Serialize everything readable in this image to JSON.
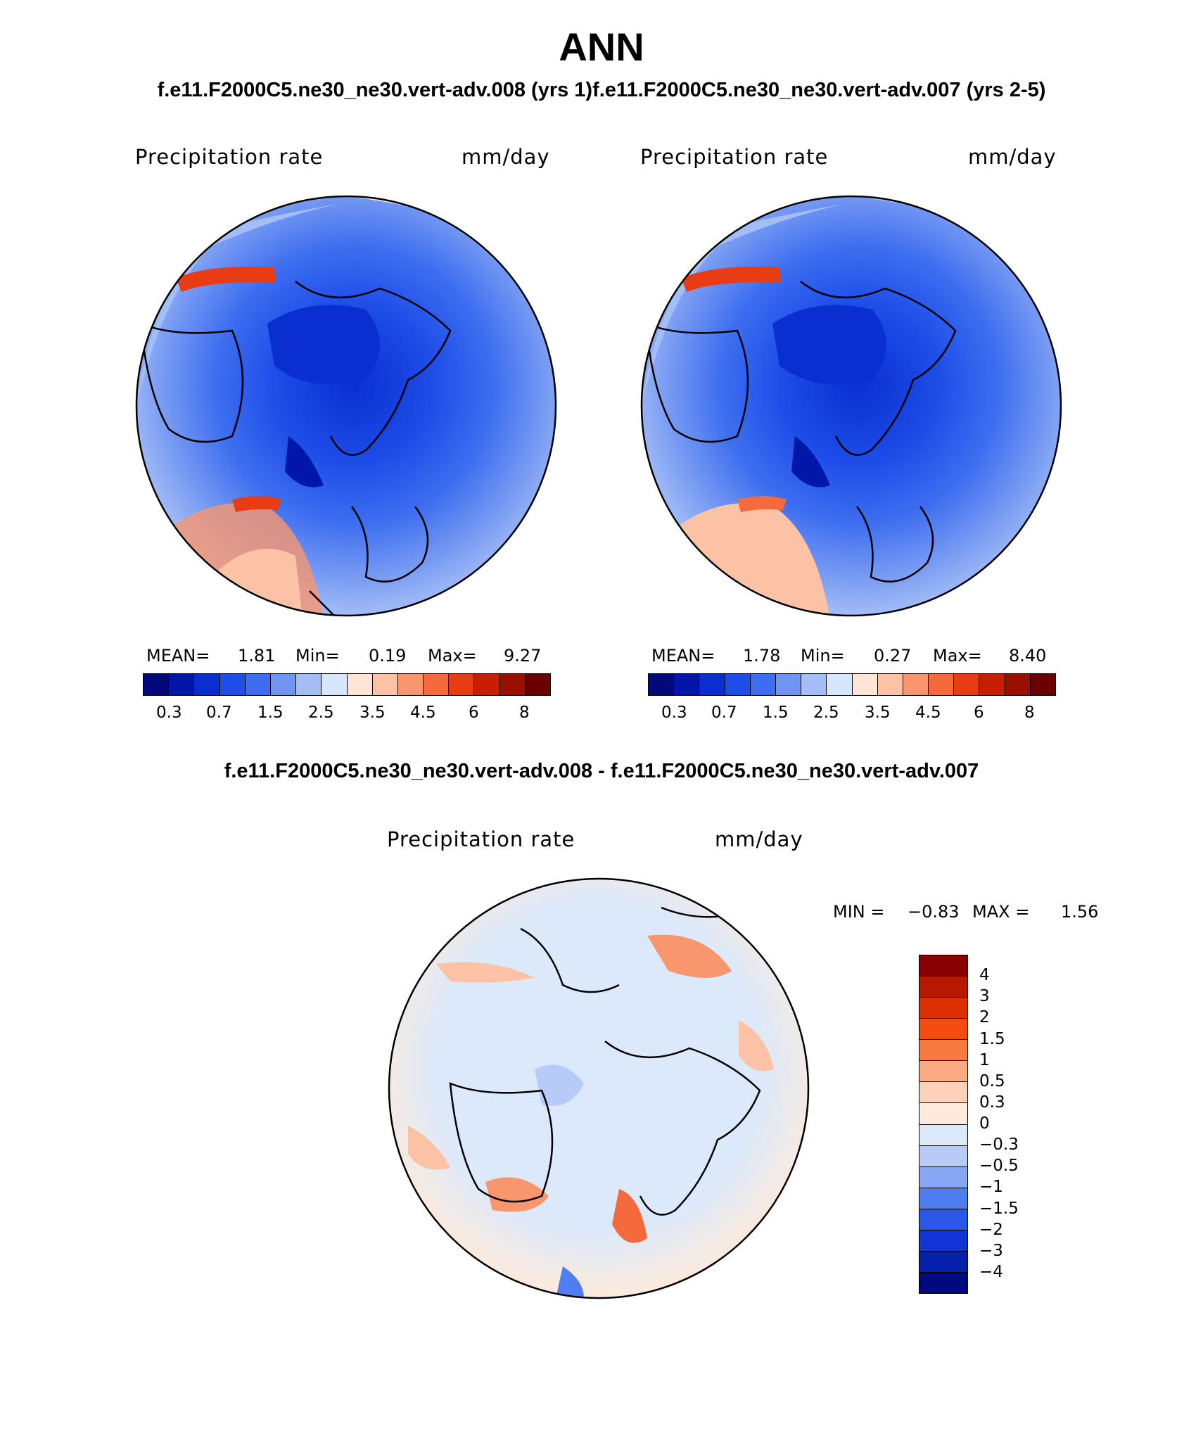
{
  "title": "ANN",
  "case_title": "f.e11.F2000C5.ne30_ne30.vert-adv.008 (yrs 1)f.e11.F2000C5.ne30_ne30.vert-adv.007 (yrs 2-5)",
  "diff_title": "f.e11.F2000C5.ne30_ne30.vert-adv.008 - f.e11.F2000C5.ne30_ne30.vert-adv.007",
  "panels": [
    {
      "variable": "Precipitation rate",
      "units": "mm/day",
      "mean_label": "MEAN=",
      "mean": "1.81",
      "min_label": "Min=",
      "min": "0.19",
      "max_label": "Max=",
      "max": "9.27"
    },
    {
      "variable": "Precipitation rate",
      "units": "mm/day",
      "mean_label": "MEAN=",
      "mean": "1.78",
      "min_label": "Min=",
      "min": "0.27",
      "max_label": "Max=",
      "max": "8.40"
    }
  ],
  "diff_panel": {
    "variable": "Precipitation rate",
    "units": "mm/day",
    "min_label": "MIN =",
    "min": "−0.83",
    "max_label": "MAX =",
    "max": "1.56"
  },
  "colorbar": {
    "colors": [
      "#000a78",
      "#0017a8",
      "#0a2fd0",
      "#1e4ee8",
      "#3d6ef0",
      "#6f94f2",
      "#a3bdf6",
      "#d6e6fb",
      "#fde6d6",
      "#fbc2a6",
      "#f8966e",
      "#f46a3c",
      "#e83d14",
      "#c81e04",
      "#9a1000",
      "#6a0000"
    ],
    "ticks": [
      "0.3",
      "0.7",
      "1.5",
      "2.5",
      "3.5",
      "4.5",
      "6",
      "8"
    ]
  },
  "diff_colorbar": {
    "colors": [
      "#8a0000",
      "#b81800",
      "#dc3000",
      "#f24c10",
      "#f97a40",
      "#fbaa80",
      "#fdd2b8",
      "#fdeadc",
      "#dbe9fb",
      "#b6cbf8",
      "#86a7f4",
      "#4f7ef0",
      "#2a56ea",
      "#1234d6",
      "#0520ac",
      "#000a80"
    ],
    "ticks": [
      "4",
      "3",
      "2",
      "1.5",
      "1",
      "0.5",
      "0.3",
      "0",
      "−0.3",
      "−0.5",
      "−1",
      "−1.5",
      "−2",
      "−3",
      "−4"
    ]
  }
}
